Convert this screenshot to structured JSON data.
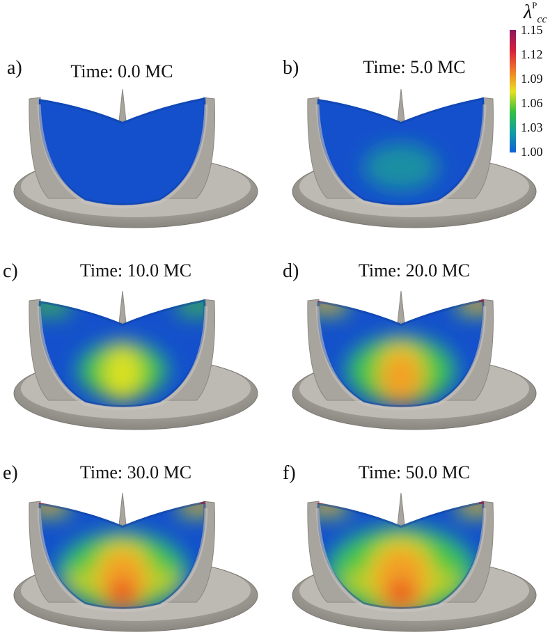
{
  "colorbar": {
    "symbol": "λ",
    "superscript": "P",
    "subscript": "cc",
    "ticks": [
      "1.15",
      "1.12",
      "1.09",
      "1.06",
      "1.03",
      "1.00"
    ],
    "min": 1.0,
    "max": 1.15,
    "colors": [
      "#8a1a5e",
      "#d81f3a",
      "#f07828",
      "#e8e020",
      "#34c040",
      "#10a0a0",
      "#1060d8"
    ]
  },
  "panels": [
    {
      "label": "a)",
      "title": "Time: 0.0 MC",
      "stage": 0
    },
    {
      "label": "b)",
      "title": "Time: 5.0 MC",
      "stage": 1
    },
    {
      "label": "c)",
      "title": "Time: 10.0 MC",
      "stage": 2
    },
    {
      "label": "d)",
      "title": "Time: 20.0 MC",
      "stage": 3
    },
    {
      "label": "e)",
      "title": "Time: 30.0 MC",
      "stage": 4
    },
    {
      "label": "f)",
      "title": "Time: 50.0 MC",
      "stage": 5
    }
  ],
  "colors": {
    "frame": "#a8a49e",
    "frame_dark": "#8a8680",
    "leaflet_base": "#1450cc"
  }
}
